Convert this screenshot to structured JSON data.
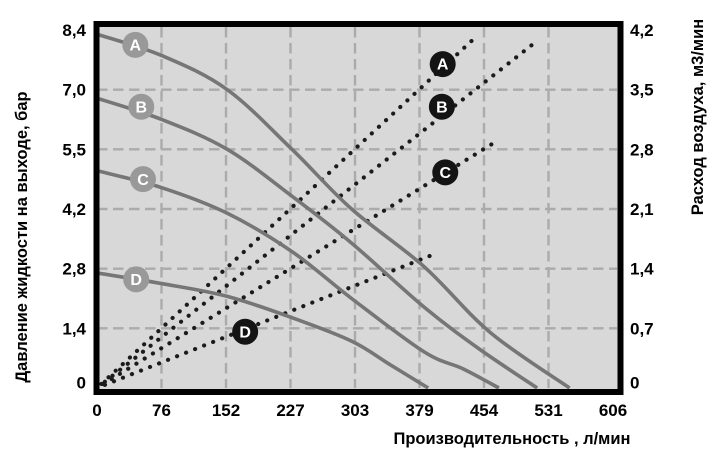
{
  "chart_data": {
    "type": "line",
    "title": "",
    "xlabel": "Производительность , л/мин",
    "ylabel_left": "Давление жидкости на выходе, бар",
    "ylabel_right": "Расход воздуха, м3/мин",
    "x_ticks": [
      "0",
      "76",
      "152",
      "227",
      "303",
      "379",
      "454",
      "531",
      "606"
    ],
    "x_max": 606,
    "y_left_ticks": [
      "0",
      "1,4",
      "2,8",
      "4,2",
      "5,5",
      "7,0",
      "8,4"
    ],
    "y_left_max": 8.4,
    "y_right_ticks": [
      "0",
      "0,7",
      "1,4",
      "2,1",
      "2,8",
      "3,5",
      "4,2"
    ],
    "y_right_max": 4.2,
    "grid": true,
    "legend_position": "on-line-badges",
    "series_notes": "A–D solid gray curves: liquid outlet pressure (bar, left axis) vs flow; A–D dotted black lines: air consumption (m3/min, right axis) vs flow",
    "pressure_series": [
      {
        "name": "A",
        "label_at": [
          45,
          8.05
        ],
        "points": [
          [
            0,
            8.3
          ],
          [
            76,
            7.8
          ],
          [
            153,
            7.0
          ],
          [
            229,
            5.6
          ],
          [
            299,
            4.2
          ],
          [
            384,
            2.85
          ],
          [
            462,
            1.3
          ],
          [
            555,
            0
          ]
        ]
      },
      {
        "name": "B",
        "label_at": [
          52,
          6.6
        ],
        "points": [
          [
            0,
            6.8
          ],
          [
            76,
            6.3
          ],
          [
            153,
            5.6
          ],
          [
            229,
            4.5
          ],
          [
            299,
            3.4
          ],
          [
            384,
            1.9
          ],
          [
            450,
            0.9
          ],
          [
            517,
            0
          ]
        ]
      },
      {
        "name": "C",
        "label_at": [
          54,
          4.9
        ],
        "points": [
          [
            0,
            5.1
          ],
          [
            76,
            4.7
          ],
          [
            153,
            4.1
          ],
          [
            229,
            3.2
          ],
          [
            299,
            2.1
          ],
          [
            384,
            0.85
          ],
          [
            430,
            0.45
          ],
          [
            472,
            0
          ]
        ]
      },
      {
        "name": "D",
        "label_at": [
          46,
          2.55
        ],
        "points": [
          [
            0,
            2.7
          ],
          [
            76,
            2.45
          ],
          [
            153,
            2.15
          ],
          [
            229,
            1.65
          ],
          [
            299,
            1.1
          ],
          [
            344,
            0.55
          ],
          [
            389,
            0
          ]
        ]
      }
    ],
    "air_series": [
      {
        "name": "A",
        "label_at": [
          406,
          3.8
        ],
        "points": [
          [
            0,
            0
          ],
          [
            443,
            4.1
          ]
        ]
      },
      {
        "name": "B",
        "label_at": [
          405,
          3.3
        ],
        "points": [
          [
            0,
            0
          ],
          [
            514,
            4.05
          ]
        ]
      },
      {
        "name": "C",
        "label_at": [
          409,
          2.53
        ],
        "points": [
          [
            0,
            0
          ],
          [
            470,
            2.9
          ]
        ]
      },
      {
        "name": "D",
        "label_at": [
          174,
          0.66
        ],
        "points": [
          [
            0,
            0
          ],
          [
            391,
            1.55
          ]
        ]
      }
    ],
    "colors": {
      "plot_bg": "#d8d8d8",
      "grid": "#ababab",
      "pressure_curve": "#767676",
      "air_dots": "#1b1b1b",
      "marker_gray": "#999999",
      "marker_black": "#141414",
      "marker_text": "#ffffff",
      "border": "#000000",
      "text": "#000000"
    }
  }
}
